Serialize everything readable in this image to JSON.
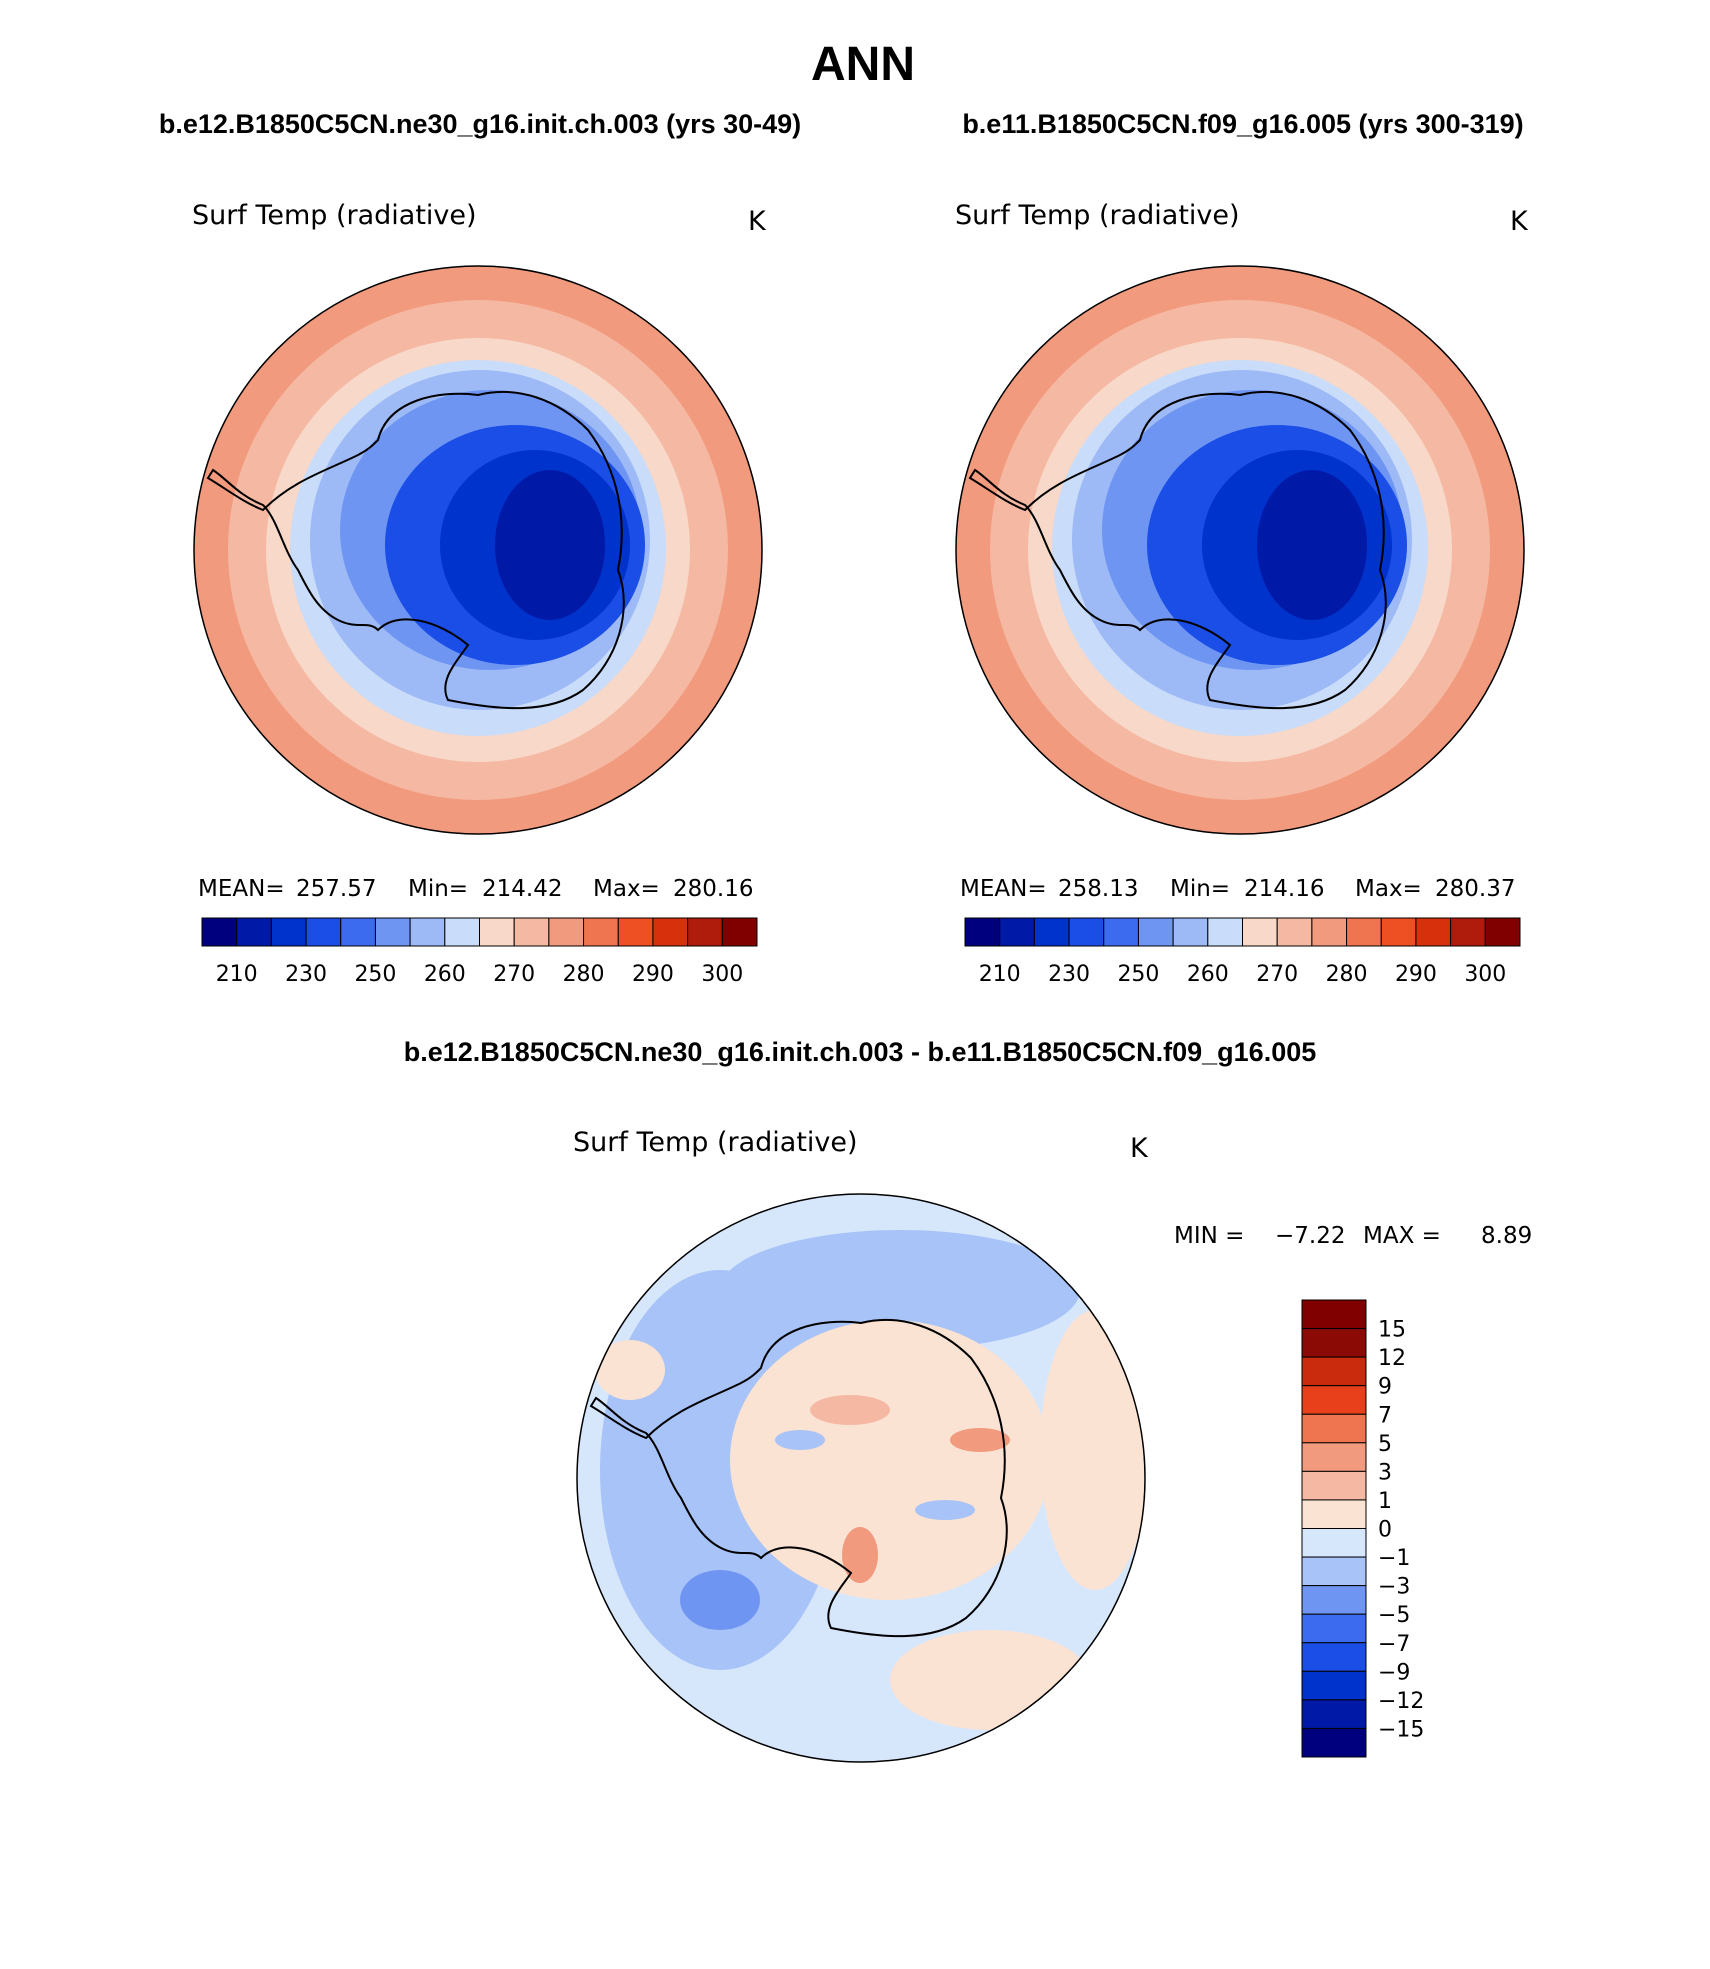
{
  "page": {
    "season": "ANN",
    "case1_title": "b.e12.B1850C5CN.ne30_g16.init.ch.003 (yrs 30-49)",
    "case2_title": "b.e11.B1850C5CN.f09_g16.005 (yrs 300-319)",
    "diff_title": "b.e12.B1850C5CN.ne30_g16.init.ch.003 - b.e11.B1850C5CN.f09_g16.005"
  },
  "colors": {
    "abs_scale": [
      "#00007f",
      "#0019a6",
      "#0032cc",
      "#1a4ee6",
      "#3d6bf0",
      "#6f95f3",
      "#9dbaf6",
      "#c9dcf9",
      "#f8d8c8",
      "#f5b9a3",
      "#f19a7d",
      "#ee7550",
      "#ee4f23",
      "#d6300d",
      "#b01c0b",
      "#800000"
    ],
    "diff_scale": [
      "#00007f",
      "#0019a6",
      "#0032cc",
      "#1a4ee6",
      "#3d6bf0",
      "#6f95f3",
      "#a7c3f7",
      "#d6e6fb",
      "#fbe3d3",
      "#f5b9a3",
      "#f19a7d",
      "#ee7550",
      "#e8401a",
      "#c92b0c",
      "#8b0a05"
    ],
    "coastline": "#000000"
  },
  "panels": [
    {
      "variable": "Surf Temp (radiative)",
      "units": "K",
      "stats": {
        "mean_label": "MEAN=",
        "mean": "257.57",
        "min_label": "Min=",
        "min": "214.42",
        "max_label": "Max=",
        "max": "280.16"
      },
      "colorbar_labels": [
        "210",
        "230",
        "250",
        "260",
        "270",
        "280",
        "290",
        "300"
      ]
    },
    {
      "variable": "Surf Temp (radiative)",
      "units": "K",
      "stats": {
        "mean_label": "MEAN=",
        "mean": "258.13",
        "min_label": "Min=",
        "min": "214.16",
        "max_label": "Max=",
        "max": "280.37"
      },
      "colorbar_labels": [
        "210",
        "230",
        "250",
        "260",
        "270",
        "280",
        "290",
        "300"
      ]
    }
  ],
  "diff_panel": {
    "variable": "Surf Temp (radiative)",
    "units": "K",
    "minmax": {
      "min_label": "MIN =",
      "min": "−7.22",
      "max_label": "MAX =",
      "max": "8.89"
    },
    "colorbar_labels": [
      "15",
      "12",
      "9",
      "7",
      "5",
      "3",
      "1",
      "0",
      "−1",
      "−3",
      "−5",
      "−7",
      "−9",
      "−12",
      "−15"
    ]
  }
}
